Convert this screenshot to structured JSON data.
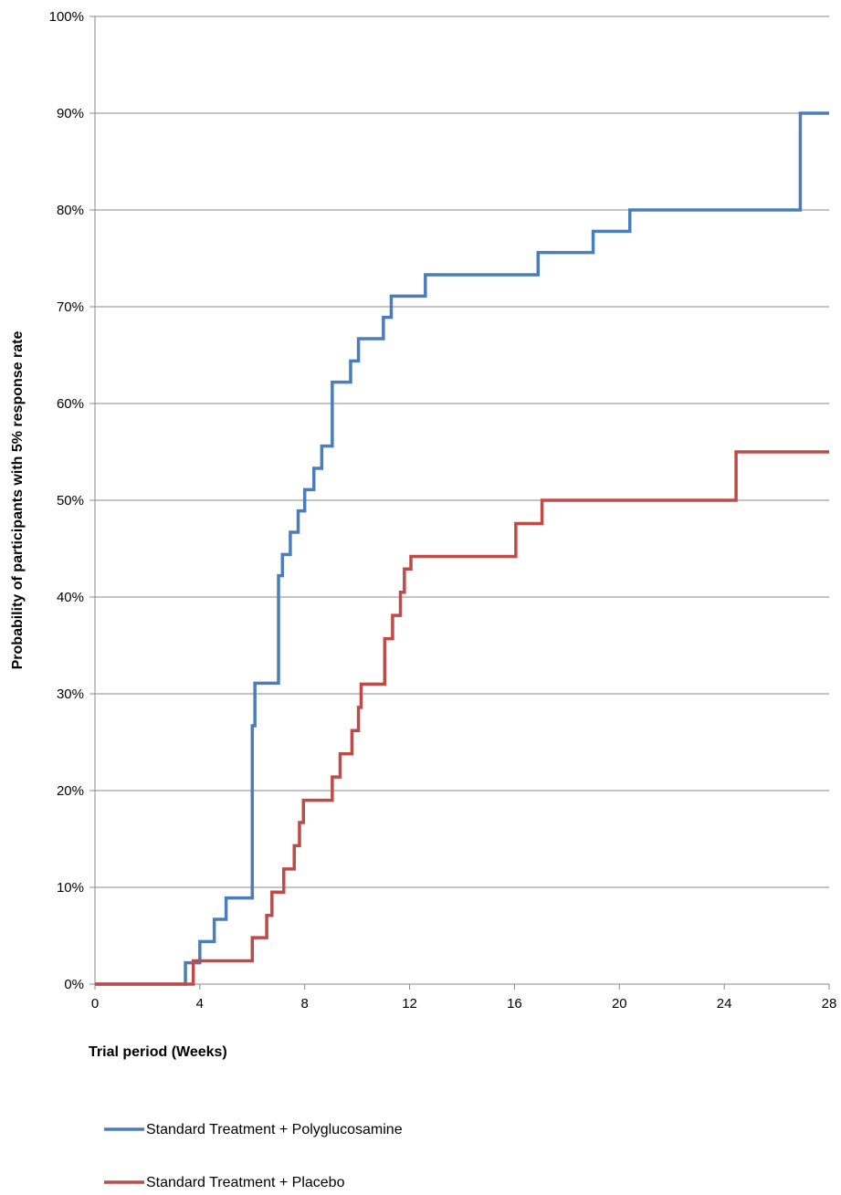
{
  "chart_data": {
    "type": "line",
    "step": true,
    "title": "",
    "xlabel": "Trial period (Weeks)",
    "ylabel": "Probability of participants with  5% response rate",
    "xlim": [
      0,
      28
    ],
    "ylim": [
      0,
      100
    ],
    "x_ticks": [
      0,
      4,
      8,
      12,
      16,
      20,
      24,
      28
    ],
    "y_ticks": [
      0,
      10,
      20,
      30,
      40,
      50,
      60,
      70,
      80,
      90,
      100
    ],
    "y_tick_suffix": "%",
    "grid": "horizontal",
    "legend_position": "bottom-left",
    "series": [
      {
        "name": "Standard Treatment + Polyglucosamine",
        "color": "#4a7ebb",
        "x": [
          0,
          3.45,
          4.0,
          4.55,
          5.0,
          6.0,
          6.1,
          7.0,
          7.15,
          7.45,
          7.75,
          8.0,
          8.35,
          8.65,
          9.05,
          9.75,
          10.05,
          11.0,
          11.3,
          12.6,
          16.9,
          19.0,
          20.4,
          26.9,
          28
        ],
        "y": [
          0,
          2.2,
          4.4,
          6.7,
          8.9,
          26.7,
          31.1,
          42.2,
          44.4,
          46.7,
          48.9,
          51.1,
          53.3,
          55.6,
          62.2,
          64.4,
          66.7,
          68.9,
          71.1,
          73.3,
          75.6,
          77.8,
          80.0,
          90.0,
          90.0
        ]
      },
      {
        "name": "Standard Treatment + Placebo",
        "color": "#be4b48",
        "x": [
          0,
          3.75,
          6.0,
          6.55,
          6.75,
          7.2,
          7.6,
          7.8,
          7.95,
          9.05,
          9.35,
          9.8,
          10.05,
          10.15,
          11.05,
          11.35,
          11.65,
          11.8,
          12.05,
          16.05,
          17.05,
          24.45,
          28
        ],
        "y": [
          0,
          2.4,
          4.8,
          7.1,
          9.5,
          11.9,
          14.3,
          16.7,
          19.0,
          21.4,
          23.8,
          26.2,
          28.6,
          31.0,
          35.7,
          38.1,
          40.5,
          42.9,
          44.2,
          47.6,
          50.0,
          55.0,
          55.0
        ]
      }
    ]
  }
}
